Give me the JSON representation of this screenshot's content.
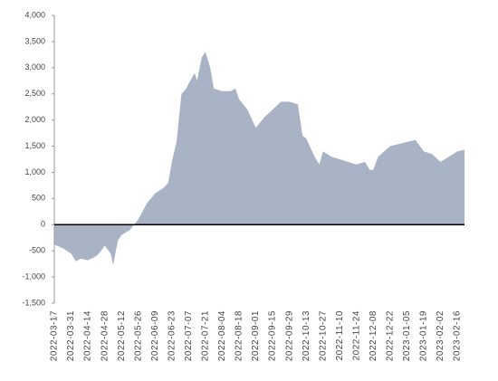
{
  "chart_data": {
    "type": "area",
    "color": "#a9b3c6",
    "x": [
      "2022-03-17",
      "2022-03-24",
      "2022-03-31",
      "2022-04-04",
      "2022-04-08",
      "2022-04-14",
      "2022-04-21",
      "2022-04-25",
      "2022-04-28",
      "2022-05-03",
      "2022-05-05",
      "2022-05-09",
      "2022-05-12",
      "2022-05-19",
      "2022-05-26",
      "2022-06-02",
      "2022-06-09",
      "2022-06-16",
      "2022-06-20",
      "2022-06-23",
      "2022-06-27",
      "2022-07-01",
      "2022-07-05",
      "2022-07-07",
      "2022-07-12",
      "2022-07-14",
      "2022-07-18",
      "2022-07-21",
      "2022-07-25",
      "2022-07-28",
      "2022-08-04",
      "2022-08-11",
      "2022-08-15",
      "2022-08-18",
      "2022-08-25",
      "2022-09-01",
      "2022-09-08",
      "2022-09-15",
      "2022-09-22",
      "2022-09-29",
      "2022-10-06",
      "2022-10-10",
      "2022-10-13",
      "2022-10-20",
      "2022-10-24",
      "2022-10-27",
      "2022-11-03",
      "2022-11-10",
      "2022-11-17",
      "2022-11-24",
      "2022-12-01",
      "2022-12-05",
      "2022-12-08",
      "2022-12-12",
      "2022-12-22",
      "2023-01-05",
      "2023-01-12",
      "2023-01-19",
      "2023-01-26",
      "2023-02-02",
      "2023-02-09",
      "2023-02-16",
      "2023-02-22"
    ],
    "values": [
      -380,
      -450,
      -550,
      -700,
      -650,
      -680,
      -600,
      -500,
      -400,
      -550,
      -780,
      -300,
      -200,
      -100,
      100,
      400,
      600,
      700,
      800,
      1200,
      1600,
      2500,
      2600,
      2700,
      2900,
      2750,
      3200,
      3300,
      3000,
      2600,
      2550,
      2550,
      2600,
      2400,
      2200,
      1850,
      2050,
      2200,
      2350,
      2350,
      2300,
      1700,
      1650,
      1300,
      1150,
      1400,
      1300,
      1250,
      1200,
      1150,
      1200,
      1050,
      1050,
      1300,
      1500,
      1580,
      1620,
      1400,
      1350,
      1200,
      1300,
      1400,
      1430
    ],
    "xlim": [
      "2022-03-17",
      "2023-02-22"
    ],
    "xticks": [
      "2022-03-17",
      "2022-03-31",
      "2022-04-14",
      "2022-04-28",
      "2022-05-12",
      "2022-05-26",
      "2022-06-09",
      "2022-06-23",
      "2022-07-07",
      "2022-07-21",
      "2022-08-04",
      "2022-08-18",
      "2022-09-01",
      "2022-09-15",
      "2022-09-29",
      "2022-10-13",
      "2022-10-27",
      "2022-11-10",
      "2022-11-24",
      "2022-12-08",
      "2022-12-22",
      "2023-01-05",
      "2023-01-19",
      "2023-02-02",
      "2023-02-16"
    ],
    "ylim": [
      -1500,
      4000
    ],
    "yticks": [
      {
        "value": 4000,
        "label": "4,000"
      },
      {
        "value": 3500,
        "label": "3,500"
      },
      {
        "value": 3000,
        "label": "3,000"
      },
      {
        "value": 2500,
        "label": "2,500"
      },
      {
        "value": 2000,
        "label": "2,000"
      },
      {
        "value": 1500,
        "label": "1,500"
      },
      {
        "value": 1000,
        "label": "1,000"
      },
      500,
      0,
      -500,
      {
        "value": -1000,
        "label": "-1,000"
      },
      {
        "value": -1500,
        "label": "-1,500"
      }
    ]
  }
}
